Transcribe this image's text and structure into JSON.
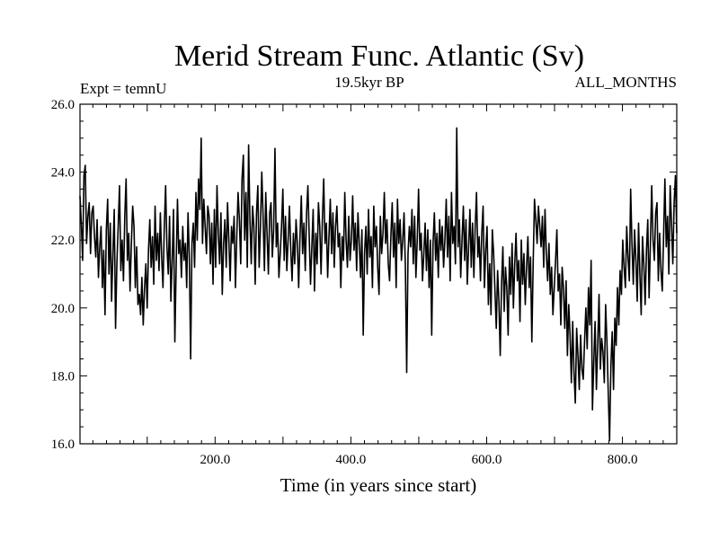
{
  "chart_data": {
    "type": "line",
    "title": "Merid Stream Func. Atlantic (Sv)",
    "subtitle_left": "Expt = temnU",
    "subtitle_center": "19.5kyr BP",
    "subtitle_right": "ALL_MONTHS",
    "xlabel": "Time (in years since start)",
    "ylabel": "",
    "xlim": [
      1,
      880
    ],
    "ylim": [
      16,
      26
    ],
    "xticks": [
      200,
      400,
      600,
      800
    ],
    "xtick_labels": [
      "200.0",
      "400.0",
      "600.0",
      "800.0"
    ],
    "yticks": [
      16,
      18,
      20,
      22,
      24,
      26
    ],
    "ytick_labels": [
      "16.0",
      "18.0",
      "20.0",
      "22.0",
      "24.0",
      "26.0"
    ],
    "series": [
      {
        "name": "Atlantic meridional stream function",
        "x_start": 1,
        "x_step": 1,
        "values": [
          23.3,
          22.5,
          21.4,
          23.9,
          24.2,
          21.9,
          22.7,
          23.1,
          21.6,
          22.8,
          23.0,
          22.1,
          21.5,
          22.6,
          20.9,
          21.8,
          22.4,
          20.6,
          21.7,
          19.8,
          22.3,
          23.2,
          21.0,
          22.5,
          20.2,
          21.6,
          22.9,
          19.4,
          21.3,
          22.4,
          23.6,
          21.1,
          22.0,
          20.8,
          22.7,
          23.8,
          21.4,
          22.2,
          20.5,
          21.9,
          23.0,
          22.4,
          20.6,
          21.8,
          20.1,
          20.4,
          19.8,
          20.9,
          19.5,
          20.6,
          21.3,
          20.0,
          21.7,
          22.6,
          21.2,
          22.1,
          20.7,
          23.0,
          21.4,
          22.2,
          21.1,
          22.8,
          21.5,
          20.6,
          22.4,
          23.6,
          21.8,
          21.0,
          22.7,
          20.2,
          21.4,
          22.9,
          19.0,
          21.2,
          23.2,
          21.6,
          22.0,
          20.9,
          22.4,
          21.4,
          21.9,
          20.6,
          22.8,
          21.5,
          18.5,
          21.9,
          22.5,
          21.2,
          23.4,
          22.0,
          23.8,
          22.9,
          25.0,
          21.9,
          23.2,
          22.4,
          21.6,
          23.0,
          22.7,
          21.3,
          22.5,
          20.7,
          22.9,
          21.2,
          23.6,
          22.2,
          21.3,
          22.8,
          20.4,
          21.9,
          22.6,
          21.2,
          23.1,
          22.0,
          20.8,
          22.4,
          21.9,
          22.7,
          20.6,
          22.1,
          23.4,
          22.6,
          21.3,
          23.8,
          24.5,
          22.0,
          23.4,
          21.2,
          24.8,
          22.6,
          21.3,
          23.0,
          22.4,
          20.7,
          22.8,
          23.6,
          21.2,
          22.4,
          24.0,
          22.7,
          21.1,
          23.4,
          22.2,
          21.0,
          22.8,
          23.1,
          21.5,
          22.3,
          24.7,
          21.8,
          22.5,
          20.9,
          21.6,
          22.4,
          23.5,
          21.4,
          22.7,
          21.1,
          22.0,
          23.0,
          21.7,
          20.8,
          22.2,
          21.3,
          22.6,
          21.9,
          20.6,
          22.1,
          23.3,
          21.6,
          22.5,
          21.1,
          22.8,
          23.6,
          22.1,
          20.7,
          21.8,
          22.9,
          20.5,
          22.2,
          21.3,
          23.1,
          22.4,
          21.0,
          22.6,
          23.8,
          21.9,
          22.5,
          20.9,
          22.1,
          23.2,
          21.6,
          22.8,
          21.2,
          22.4,
          23.0,
          21.8,
          22.2,
          20.6,
          22.1,
          21.4,
          23.4,
          22.0,
          21.2,
          22.7,
          21.4,
          22.0,
          23.3,
          21.7,
          22.5,
          21.1,
          22.8,
          21.9,
          20.9,
          22.3,
          19.2,
          21.6,
          22.4,
          21.0,
          22.9,
          21.5,
          22.1,
          20.6,
          23.0,
          21.8,
          22.4,
          21.2,
          20.4,
          22.7,
          21.6,
          22.2,
          23.4,
          21.9,
          22.6,
          21.3,
          20.8,
          22.1,
          23.1,
          21.5,
          22.5,
          20.6,
          23.2,
          21.9,
          22.6,
          21.4,
          22.0,
          22.8,
          21.2,
          18.1,
          21.6,
          22.4,
          21.8,
          22.9,
          21.3,
          22.7,
          20.9,
          22.0,
          23.5,
          21.7,
          22.2,
          20.8,
          21.6,
          22.5,
          21.1,
          22.3,
          20.6,
          22.0,
          19.2,
          21.9,
          22.8,
          21.4,
          22.2,
          20.9,
          22.6,
          21.7,
          22.4,
          21.2,
          22.0,
          23.2,
          21.5,
          22.7,
          20.8,
          23.4,
          21.9,
          22.4,
          21.3,
          25.3,
          21.8,
          22.6,
          20.9,
          22.0,
          23.0,
          21.4,
          22.6,
          20.7,
          21.8,
          22.9,
          21.2,
          22.5,
          20.9,
          22.4,
          23.4,
          21.5,
          22.1,
          20.8,
          22.2,
          23.0,
          20.6,
          21.7,
          22.4,
          20.1,
          21.3,
          19.8,
          22.3,
          21.6,
          20.5,
          19.4,
          21.1,
          20.2,
          18.6,
          20.7,
          21.8,
          19.9,
          21.2,
          20.6,
          19.2,
          21.5,
          20.4,
          21.9,
          20.0,
          21.3,
          22.2,
          20.8,
          21.4,
          19.6,
          22.0,
          20.7,
          21.6,
          20.1,
          21.2,
          22.1,
          20.6,
          21.5,
          19.0,
          21.3,
          23.2,
          22.6,
          21.9,
          23.0,
          22.4,
          21.8,
          22.7,
          21.2,
          22.9,
          21.6,
          20.8,
          21.9,
          20.4,
          21.2,
          19.8,
          20.6,
          21.4,
          22.3,
          20.5,
          21.0,
          19.5,
          21.2,
          20.6,
          19.4,
          20.8,
          18.6,
          20.1,
          19.2,
          17.8,
          19.6,
          18.1,
          17.2,
          19.4,
          18.6,
          17.6,
          19.2,
          18.2,
          17.9,
          19.0,
          20.0,
          18.8,
          20.6,
          19.5,
          21.4,
          17.0,
          18.4,
          19.6,
          17.6,
          18.9,
          20.4,
          18.2,
          19.1,
          18.7,
          17.8,
          20.1,
          19.0,
          17.5,
          16.1,
          18.3,
          19.3,
          17.6,
          19.7,
          18.9,
          20.6,
          19.5,
          21.1,
          20.4,
          22.0,
          21.2,
          20.6,
          22.4,
          21.5,
          20.8,
          23.5,
          21.9,
          20.7,
          22.3,
          21.4,
          20.2,
          22.5,
          21.0,
          19.8,
          22.1,
          21.3,
          20.1,
          21.7,
          22.6,
          20.3,
          21.9,
          23.6,
          22.0,
          21.4,
          22.8,
          23.1,
          20.8,
          22.2,
          21.1,
          20.5,
          22.1,
          23.8,
          21.8,
          22.7,
          21.0,
          23.6,
          22.5,
          21.3,
          23.1,
          23.9,
          22.2
        ]
      }
    ]
  }
}
